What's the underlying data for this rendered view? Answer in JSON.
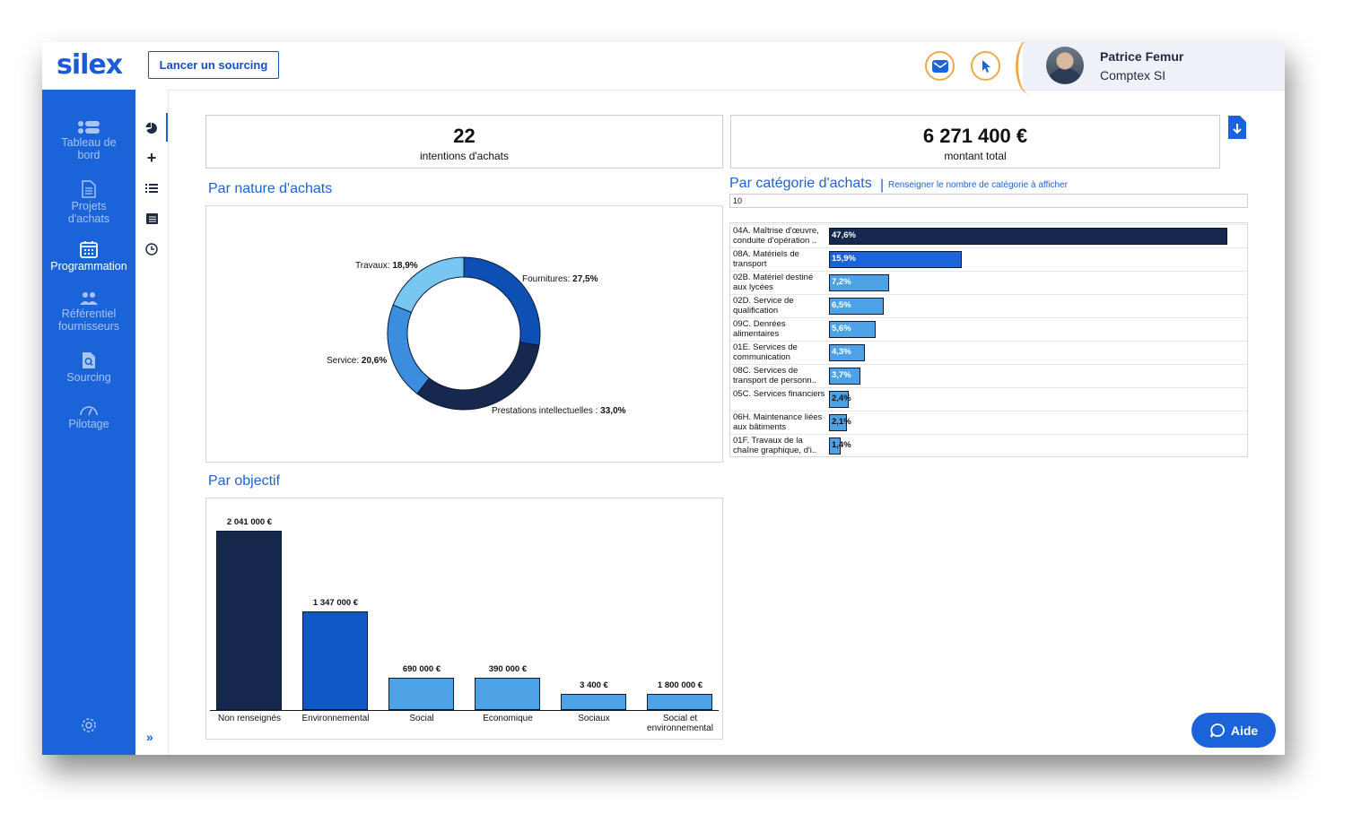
{
  "header": {
    "logo": "silex",
    "sourcing_button": "Lancer un sourcing",
    "user": {
      "name": "Patrice Femur",
      "org": "Comptex SI"
    }
  },
  "sidebar": {
    "items": [
      {
        "label": "Tableau de bord",
        "icon": "dashboard-icon",
        "active": false
      },
      {
        "label": "Projets d'achats",
        "icon": "document-icon",
        "active": false
      },
      {
        "label": "Programmation",
        "icon": "calendar-icon",
        "active": true
      },
      {
        "label": "Référentiel fournisseurs",
        "icon": "users-icon",
        "active": false
      },
      {
        "label": "Sourcing",
        "icon": "search-document-icon",
        "active": false
      },
      {
        "label": "Pilotage",
        "icon": "gauge-icon",
        "active": false
      }
    ]
  },
  "kpis": [
    {
      "value": "22",
      "label": "intentions d'achats"
    },
    {
      "value": "6 271 400 €",
      "label": "montant total"
    }
  ],
  "nature": {
    "title": "Par nature d'achats",
    "chart_data": {
      "type": "pie",
      "categories": [
        "Fournitures",
        "Prestations intellectuelles",
        "Service",
        "Travaux"
      ],
      "values": [
        27.5,
        33.0,
        20.6,
        18.9
      ],
      "labels": [
        "Fournitures: 27,5%",
        "Prestations intellectuelles : 33,0%",
        "Service: 20,6%",
        "Travaux: 18,9%"
      ],
      "colors": [
        "#0d4fb3",
        "#16284d",
        "#3b8de0",
        "#78c6f2"
      ]
    }
  },
  "categorie": {
    "title": "Par catégorie d'achats",
    "note": "Renseigner le nombre de catégorie à afficher",
    "input_value": "10",
    "chart_data": {
      "type": "bar",
      "orientation": "horizontal",
      "categories": [
        "04A. Maîtrise d'œuvre, conduite d'opération ..",
        "08A. Matériels de transport",
        "02B. Matériel destiné aux lycées",
        "02D. Service de qualification",
        "09C. Denrées alimentaires",
        "01E. Services de communication",
        "08C. Services de transport de personn..",
        "05C. Services financiers",
        "06H. Maintenance liées aux bâtiments",
        "01F. Travaux de la chaîne graphique, d'i.."
      ],
      "values": [
        47.6,
        15.9,
        7.2,
        6.5,
        5.6,
        4.3,
        3.7,
        2.4,
        2.1,
        1.4
      ],
      "labels": [
        "47,6%",
        "15,9%",
        "7,2%",
        "6,5%",
        "5,6%",
        "4,3%",
        "3,7%",
        "2,4%",
        "2,1%",
        "1,4%"
      ],
      "colors": [
        "#16284d",
        "#1b63d8",
        "#4da2e6",
        "#4da2e6",
        "#4da2e6",
        "#4da2e6",
        "#4da2e6",
        "#4da2e6",
        "#4da2e6",
        "#4da2e6"
      ]
    }
  },
  "objectif": {
    "title": "Par objectif",
    "chart_data": {
      "type": "bar",
      "categories": [
        "Non renseignés",
        "Environnemental",
        "Social",
        "Economique",
        "Sociaux",
        "Social et environnemental"
      ],
      "values": [
        2041000,
        1347000,
        690000,
        390000,
        3400,
        1800000
      ],
      "labels": [
        "2 041 000 €",
        "1 347 000 €",
        "690 000 €",
        "390 000 €",
        "3 400 €",
        "1 800 000 €"
      ],
      "bar_levels": [
        1.0,
        0.55,
        0.18,
        0.18,
        0.09,
        0.09
      ],
      "colors": [
        "#16284d",
        "#1058c8",
        "#4da2e6",
        "#4da2e6",
        "#4da2e6",
        "#4da2e6"
      ]
    }
  },
  "help_button": "Aide"
}
